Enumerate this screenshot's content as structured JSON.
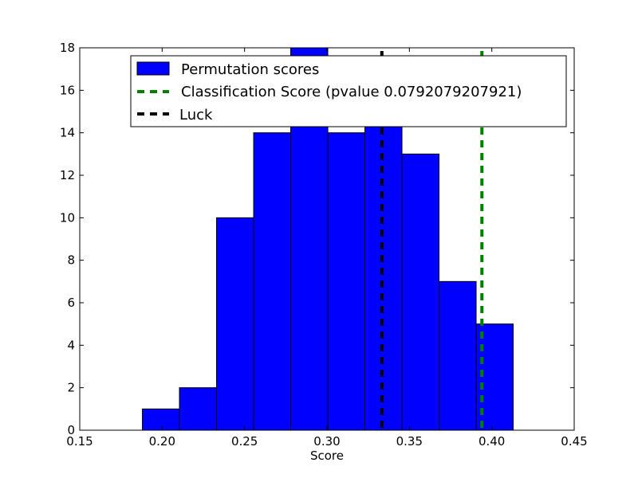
{
  "chart_data": {
    "type": "histogram",
    "title": "",
    "xlabel": "Score",
    "ylabel": "",
    "xlim": [
      0.15,
      0.45
    ],
    "ylim": [
      0,
      18
    ],
    "xticks": [
      "0.15",
      "0.20",
      "0.25",
      "0.30",
      "0.35",
      "0.40",
      "0.45"
    ],
    "yticks": [
      "0",
      "2",
      "4",
      "6",
      "8",
      "10",
      "12",
      "14",
      "16",
      "18"
    ],
    "grid": false,
    "legend_position": "top",
    "bins": [
      {
        "x0": 0.188,
        "x1": 0.2105,
        "count": 1
      },
      {
        "x0": 0.2105,
        "x1": 0.233,
        "count": 2
      },
      {
        "x0": 0.233,
        "x1": 0.2555,
        "count": 10
      },
      {
        "x0": 0.2555,
        "x1": 0.278,
        "count": 14
      },
      {
        "x0": 0.278,
        "x1": 0.3005,
        "count": 18
      },
      {
        "x0": 0.3005,
        "x1": 0.323,
        "count": 14
      },
      {
        "x0": 0.323,
        "x1": 0.3455,
        "count": 17
      },
      {
        "x0": 0.3455,
        "x1": 0.368,
        "count": 13
      },
      {
        "x0": 0.368,
        "x1": 0.3905,
        "count": 7
      },
      {
        "x0": 0.3905,
        "x1": 0.413,
        "count": 5
      }
    ],
    "vlines": [
      {
        "label": "Classification Score (pvalue 0.0792079207921)",
        "x": 0.394,
        "color": "#008000",
        "style": "dashed"
      },
      {
        "label": "Luck",
        "x": 0.3333,
        "color": "#000000",
        "style": "dashed"
      }
    ],
    "series": [
      {
        "name": "Permutation scores",
        "color": "#0000ff"
      }
    ]
  }
}
